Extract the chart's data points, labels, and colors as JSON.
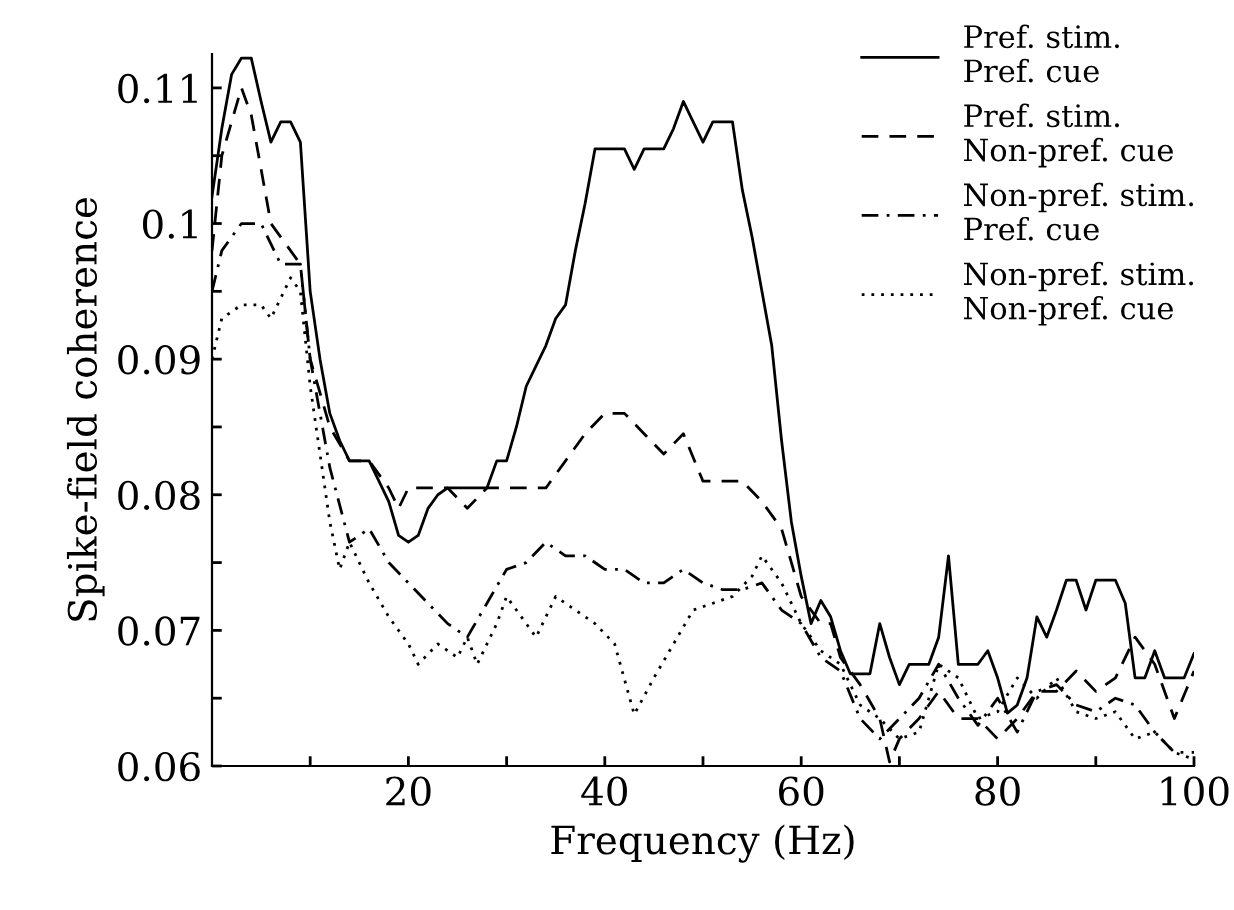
{
  "chart_data": {
    "type": "line",
    "xlabel": "Frequency (Hz)",
    "ylabel": "Spike-field coherence",
    "xlim": [
      0,
      100
    ],
    "ylim": [
      0.06,
      0.1125
    ],
    "xticks": [
      {
        "value": 10,
        "label": null
      },
      20,
      {
        "value": 30,
        "label": null
      },
      40,
      {
        "value": 50,
        "label": null
      },
      60,
      {
        "value": 70,
        "label": null
      },
      80,
      {
        "value": 90,
        "label": null
      },
      100
    ],
    "yticks": [
      0.06,
      {
        "value": 0.065,
        "label": null
      },
      0.07,
      {
        "value": 0.075,
        "label": null
      },
      0.08,
      {
        "value": 0.085,
        "label": null
      },
      0.09,
      {
        "value": 0.095,
        "label": null
      },
      0.1,
      {
        "value": 0.105,
        "label": null
      },
      0.11
    ],
    "grid": false,
    "legend": "top right",
    "marker": "none",
    "series": [
      {
        "name": "Pref. stim.\nPref. cue",
        "color": "#000000",
        "line_style": "solid",
        "x": [
          0,
          1,
          2,
          3,
          4,
          5,
          6,
          7,
          8,
          9,
          10,
          11,
          12,
          13,
          14,
          15,
          16,
          17,
          18,
          19,
          20,
          21,
          22,
          23,
          24,
          25,
          26,
          27,
          28,
          29,
          30,
          31,
          32,
          33,
          34,
          35,
          36,
          37,
          38,
          39,
          40,
          41,
          42,
          43,
          44,
          45,
          46,
          47,
          48,
          49,
          50,
          51,
          52,
          53,
          54,
          55,
          56,
          57,
          58,
          59,
          60,
          61,
          62,
          63,
          64,
          65,
          66,
          67,
          68,
          69,
          70,
          71,
          72,
          73,
          74,
          75,
          76,
          77,
          78,
          79,
          80,
          81,
          82,
          83,
          84,
          85,
          86,
          87,
          88,
          89,
          90,
          91,
          92,
          93,
          94,
          95,
          96,
          97,
          98,
          99,
          100
        ],
        "values": [
          0.102,
          0.107,
          0.111,
          0.1122,
          0.1122,
          0.109,
          0.106,
          0.1075,
          0.1075,
          0.106,
          0.095,
          0.09,
          0.086,
          0.084,
          0.0825,
          0.0825,
          0.0825,
          0.081,
          0.0795,
          0.077,
          0.0765,
          0.077,
          0.079,
          0.08,
          0.0805,
          0.0805,
          0.0805,
          0.0805,
          0.0805,
          0.0825,
          0.0825,
          0.085,
          0.088,
          0.0895,
          0.091,
          0.093,
          0.094,
          0.098,
          0.1015,
          0.1055,
          0.1055,
          0.1055,
          0.1055,
          0.104,
          0.1055,
          0.1055,
          0.1055,
          0.107,
          0.109,
          0.1075,
          0.106,
          0.1075,
          0.1075,
          0.1075,
          0.1025,
          0.099,
          0.095,
          0.091,
          0.084,
          0.078,
          0.074,
          0.0705,
          0.0722,
          0.071,
          0.0685,
          0.0668,
          0.0668,
          0.0668,
          0.0705,
          0.068,
          0.066,
          0.0675,
          0.0675,
          0.0675,
          0.0695,
          0.0755,
          0.0675,
          0.0675,
          0.0675,
          0.0685,
          0.0665,
          0.0639,
          0.0645,
          0.0665,
          0.071,
          0.0695,
          0.0715,
          0.0737,
          0.0737,
          0.0715,
          0.0737,
          0.0737,
          0.0737,
          0.072,
          0.0665,
          0.0665,
          0.0685,
          0.0665,
          0.0665,
          0.0665,
          0.0683
        ]
      },
      {
        "name": "Pref. stim.\nNon-pref. cue",
        "color": "#000000",
        "line_style": "dashed",
        "x": [
          0,
          1,
          3,
          4,
          6,
          8,
          9,
          10,
          12,
          14,
          16,
          18,
          19,
          20,
          24,
          26,
          28,
          34,
          36,
          38,
          40,
          42,
          44,
          46,
          48,
          50,
          54,
          56,
          58,
          60,
          62,
          63,
          64,
          66,
          68,
          69,
          70,
          72,
          74,
          76,
          78,
          80,
          82,
          84,
          86,
          88,
          90,
          92,
          94,
          96,
          98,
          100
        ],
        "values": [
          0.098,
          0.105,
          0.11,
          0.108,
          0.1,
          0.098,
          0.097,
          0.09,
          0.085,
          0.0825,
          0.0825,
          0.0805,
          0.079,
          0.0805,
          0.0805,
          0.079,
          0.0805,
          0.0805,
          0.0825,
          0.0845,
          0.086,
          0.086,
          0.0845,
          0.083,
          0.0845,
          0.081,
          0.081,
          0.0795,
          0.0775,
          0.0725,
          0.0705,
          0.0705,
          0.068,
          0.066,
          0.0635,
          0.0603,
          0.062,
          0.0635,
          0.0655,
          0.0635,
          0.0635,
          0.062,
          0.0635,
          0.0655,
          0.0655,
          0.067,
          0.0655,
          0.0665,
          0.0695,
          0.0675,
          0.0635,
          0.067
        ]
      },
      {
        "name": "Non-pref. stim.\nPref. cue",
        "color": "#000000",
        "line_style": "dashdot",
        "x": [
          0,
          1,
          3,
          5,
          7,
          9,
          10,
          12,
          14,
          16,
          18,
          20,
          22,
          24,
          26,
          28,
          30,
          32,
          34,
          36,
          38,
          40,
          42,
          44,
          46,
          48,
          50,
          52,
          54,
          56,
          58,
          60,
          62,
          64,
          66,
          68,
          70,
          72,
          74,
          76,
          78,
          80,
          82,
          84,
          86,
          88,
          90,
          92,
          94,
          96,
          98,
          100
        ],
        "values": [
          0.095,
          0.098,
          0.1,
          0.1,
          0.097,
          0.097,
          0.09,
          0.082,
          0.0765,
          0.0775,
          0.075,
          0.0735,
          0.072,
          0.0705,
          0.0695,
          0.072,
          0.0745,
          0.075,
          0.0765,
          0.0755,
          0.0755,
          0.0745,
          0.0745,
          0.0735,
          0.0735,
          0.0745,
          0.0735,
          0.073,
          0.073,
          0.0735,
          0.0715,
          0.0705,
          0.068,
          0.067,
          0.0635,
          0.062,
          0.0635,
          0.065,
          0.0675,
          0.065,
          0.063,
          0.065,
          0.0625,
          0.0655,
          0.066,
          0.0645,
          0.064,
          0.065,
          0.0645,
          0.0625,
          0.061,
          0.061
        ]
      },
      {
        "name": "Non-pref. stim.\nNon-pref. cue",
        "color": "#000000",
        "line_style": "dotted",
        "x": [
          0,
          1,
          3,
          5,
          6,
          8,
          9,
          10,
          12,
          13,
          14,
          16,
          18,
          20,
          21,
          23,
          25,
          26,
          27,
          29,
          30,
          31,
          33,
          35,
          37,
          39,
          41,
          43,
          45,
          47,
          49,
          51,
          53,
          55,
          56,
          58,
          60,
          62,
          64,
          66,
          68,
          70,
          72,
          74,
          76,
          78,
          80,
          82,
          84,
          86,
          88,
          90,
          92,
          94,
          96,
          98,
          100
        ],
        "values": [
          0.09,
          0.093,
          0.094,
          0.094,
          0.093,
          0.096,
          0.095,
          0.088,
          0.078,
          0.0745,
          0.0765,
          0.0735,
          0.071,
          0.069,
          0.0675,
          0.069,
          0.068,
          0.0695,
          0.0675,
          0.0705,
          0.0725,
          0.0715,
          0.0695,
          0.0725,
          0.0715,
          0.0705,
          0.069,
          0.0638,
          0.0665,
          0.069,
          0.0715,
          0.072,
          0.0725,
          0.074,
          0.0755,
          0.0735,
          0.0705,
          0.0685,
          0.0675,
          0.0645,
          0.0635,
          0.062,
          0.0625,
          0.0675,
          0.0665,
          0.0635,
          0.064,
          0.0665,
          0.065,
          0.0665,
          0.064,
          0.0635,
          0.064,
          0.062,
          0.0625,
          0.061,
          0.0605
        ]
      }
    ]
  }
}
